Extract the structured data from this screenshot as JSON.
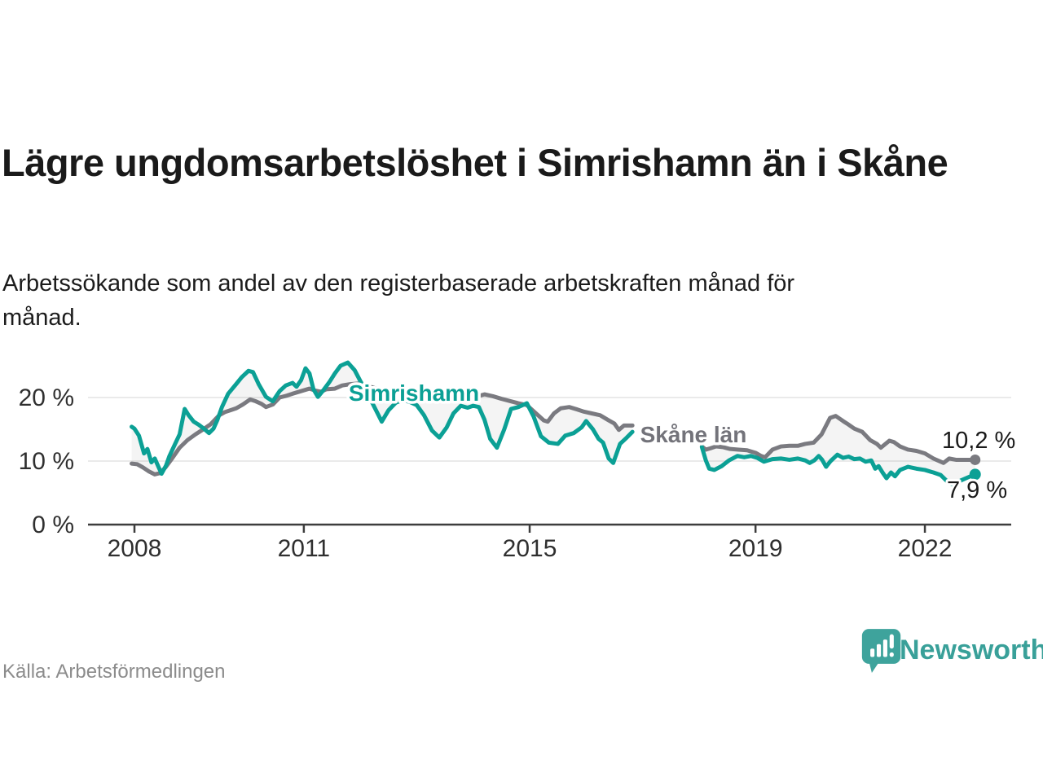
{
  "header": {
    "title": "Lägre ungdomsarbetslöshet i Simrishamn än i Skåne",
    "subtitle": "Arbetssökande som andel av den registerbaserade arbetskraften månad för månad."
  },
  "footer": {
    "source": "Källa: Arbetsförmedlingen",
    "brand": "Newsworthy",
    "brand_icon": "bar-chart-speech-bubble-icon"
  },
  "colors": {
    "simrishamn_teal": "#0ba095",
    "skane_gray": "#7a7a80",
    "skane_label_gray": "#73737a",
    "grid_gray": "#e3e3e3",
    "axis_dark": "#3d3d3d",
    "band_fill": "rgba(150,150,150,0.10)",
    "brand_teal": "#3ea39c"
  },
  "chart_data": {
    "type": "line",
    "title": "Lägre ungdomsarbetslöshet i Simrishamn än i Skåne",
    "subtitle": "Arbetssökande som andel av den registerbaserade arbetskraften månad för månad.",
    "grid": "horizontal",
    "legend_position": "inline-labels",
    "x_axis": {
      "tick_values": [
        2008,
        2011,
        2015,
        2019,
        2022
      ],
      "tick_labels": [
        "2008",
        "2011",
        "2015",
        "2019",
        "2022"
      ],
      "range": [
        2007.6,
        2023.6
      ]
    },
    "y_axis": {
      "tick_values": [
        0,
        10,
        20
      ],
      "tick_labels": [
        "0 %",
        "10 %",
        "20 %"
      ],
      "range": [
        0,
        27
      ],
      "unit": "%"
    },
    "data_gap": [
      2016.85,
      2018.05
    ],
    "series": [
      {
        "name": "Simrishamn",
        "color": "#0ba095",
        "end_value": 7.9,
        "end_value_label": "7,9 %",
        "segments": [
          [
            [
              2007.95,
              15.4
            ],
            [
              2008.0,
              15.1
            ],
            [
              2008.08,
              14.0
            ],
            [
              2008.17,
              11.2
            ],
            [
              2008.23,
              11.9
            ],
            [
              2008.3,
              9.8
            ],
            [
              2008.36,
              10.4
            ],
            [
              2008.43,
              9.0
            ],
            [
              2008.48,
              8.0
            ],
            [
              2008.56,
              9.3
            ],
            [
              2008.62,
              10.8
            ],
            [
              2008.72,
              12.7
            ],
            [
              2008.8,
              14.2
            ],
            [
              2008.89,
              18.2
            ],
            [
              2008.96,
              17.2
            ],
            [
              2009.05,
              16.2
            ],
            [
              2009.14,
              15.7
            ],
            [
              2009.23,
              15.1
            ],
            [
              2009.32,
              14.4
            ],
            [
              2009.4,
              15.1
            ],
            [
              2009.47,
              16.5
            ],
            [
              2009.55,
              18.5
            ],
            [
              2009.66,
              20.6
            ],
            [
              2009.8,
              22.1
            ],
            [
              2009.9,
              23.2
            ],
            [
              2010.02,
              24.2
            ],
            [
              2010.1,
              24.0
            ],
            [
              2010.2,
              22.1
            ],
            [
              2010.33,
              20.1
            ],
            [
              2010.45,
              19.4
            ],
            [
              2010.57,
              21.0
            ],
            [
              2010.68,
              21.9
            ],
            [
              2010.8,
              22.3
            ],
            [
              2010.87,
              21.7
            ],
            [
              2010.95,
              22.7
            ],
            [
              2011.03,
              24.6
            ],
            [
              2011.1,
              23.8
            ],
            [
              2011.17,
              21.3
            ],
            [
              2011.25,
              20.1
            ],
            [
              2011.35,
              21.2
            ],
            [
              2011.45,
              22.4
            ],
            [
              2011.55,
              23.8
            ],
            [
              2011.65,
              25.0
            ],
            [
              2011.78,
              25.5
            ],
            [
              2011.9,
              24.3
            ],
            [
              2012.0,
              22.6
            ],
            [
              2012.12,
              20.8
            ],
            [
              2012.25,
              18.5
            ],
            [
              2012.38,
              16.2
            ],
            [
              2012.5,
              18.0
            ],
            [
              2012.63,
              19.2
            ],
            [
              2012.75,
              19.6
            ],
            [
              2012.88,
              19.3
            ],
            [
              2013.0,
              18.8
            ],
            [
              2013.13,
              17.2
            ],
            [
              2013.27,
              14.8
            ],
            [
              2013.4,
              13.7
            ],
            [
              2013.53,
              15.3
            ],
            [
              2013.65,
              17.5
            ],
            [
              2013.78,
              18.7
            ],
            [
              2013.9,
              18.4
            ],
            [
              2014.0,
              18.7
            ],
            [
              2014.1,
              18.5
            ],
            [
              2014.2,
              16.5
            ],
            [
              2014.3,
              13.5
            ],
            [
              2014.42,
              12.1
            ],
            [
              2014.55,
              15.0
            ],
            [
              2014.67,
              18.2
            ],
            [
              2014.8,
              18.5
            ],
            [
              2014.95,
              19.1
            ],
            [
              2015.07,
              17.0
            ],
            [
              2015.2,
              13.9
            ],
            [
              2015.34,
              12.9
            ],
            [
              2015.5,
              12.7
            ],
            [
              2015.63,
              14.0
            ],
            [
              2015.78,
              14.4
            ],
            [
              2015.92,
              15.3
            ],
            [
              2016.0,
              16.3
            ],
            [
              2016.12,
              15.0
            ],
            [
              2016.22,
              13.5
            ],
            [
              2016.3,
              12.9
            ],
            [
              2016.4,
              10.4
            ],
            [
              2016.48,
              9.7
            ],
            [
              2016.6,
              12.7
            ],
            [
              2016.72,
              13.7
            ],
            [
              2016.82,
              14.6
            ]
          ],
          [
            [
              2018.05,
              12.2
            ],
            [
              2018.12,
              10.1
            ],
            [
              2018.18,
              8.8
            ],
            [
              2018.27,
              8.6
            ],
            [
              2018.4,
              9.2
            ],
            [
              2018.53,
              10.1
            ],
            [
              2018.68,
              10.8
            ],
            [
              2018.8,
              10.6
            ],
            [
              2018.92,
              10.8
            ],
            [
              2019.03,
              10.5
            ],
            [
              2019.15,
              9.9
            ],
            [
              2019.3,
              10.3
            ],
            [
              2019.45,
              10.4
            ],
            [
              2019.6,
              10.2
            ],
            [
              2019.75,
              10.4
            ],
            [
              2019.88,
              10.1
            ],
            [
              2019.96,
              9.7
            ],
            [
              2020.04,
              10.1
            ],
            [
              2020.12,
              10.8
            ],
            [
              2020.18,
              10.2
            ],
            [
              2020.25,
              9.1
            ],
            [
              2020.33,
              10.0
            ],
            [
              2020.45,
              11.0
            ],
            [
              2020.55,
              10.5
            ],
            [
              2020.65,
              10.7
            ],
            [
              2020.75,
              10.3
            ],
            [
              2020.85,
              10.4
            ],
            [
              2020.95,
              9.9
            ],
            [
              2021.05,
              10.1
            ],
            [
              2021.12,
              8.8
            ],
            [
              2021.18,
              9.2
            ],
            [
              2021.25,
              8.2
            ],
            [
              2021.32,
              7.3
            ],
            [
              2021.4,
              8.2
            ],
            [
              2021.47,
              7.6
            ],
            [
              2021.56,
              8.6
            ],
            [
              2021.7,
              9.1
            ],
            [
              2021.85,
              8.8
            ],
            [
              2022.0,
              8.6
            ],
            [
              2022.15,
              8.2
            ],
            [
              2022.28,
              7.8
            ],
            [
              2022.42,
              6.6
            ],
            [
              2022.5,
              6.3
            ],
            [
              2022.65,
              7.0
            ],
            [
              2022.78,
              7.5
            ],
            [
              2022.89,
              7.9
            ]
          ]
        ]
      },
      {
        "name": "Skåne län",
        "color": "#7a7a80",
        "end_value": 10.2,
        "end_value_label": "10,2 %",
        "segments": [
          [
            [
              2007.95,
              9.6
            ],
            [
              2008.05,
              9.5
            ],
            [
              2008.15,
              9.0
            ],
            [
              2008.25,
              8.4
            ],
            [
              2008.36,
              7.9
            ],
            [
              2008.45,
              8.1
            ],
            [
              2008.55,
              9.0
            ],
            [
              2008.65,
              10.2
            ],
            [
              2008.8,
              12.1
            ],
            [
              2008.94,
              13.3
            ],
            [
              2009.08,
              14.2
            ],
            [
              2009.22,
              15.0
            ],
            [
              2009.35,
              15.8
            ],
            [
              2009.5,
              17.2
            ],
            [
              2009.6,
              17.7
            ],
            [
              2009.7,
              18.0
            ],
            [
              2009.8,
              18.3
            ],
            [
              2009.92,
              18.9
            ],
            [
              2010.05,
              19.7
            ],
            [
              2010.15,
              19.4
            ],
            [
              2010.25,
              19.0
            ],
            [
              2010.33,
              18.5
            ],
            [
              2010.45,
              18.9
            ],
            [
              2010.57,
              20.0
            ],
            [
              2010.7,
              20.3
            ],
            [
              2010.8,
              20.6
            ],
            [
              2010.95,
              21.0
            ],
            [
              2011.1,
              21.4
            ],
            [
              2011.2,
              21.1
            ],
            [
              2011.3,
              20.9
            ],
            [
              2011.4,
              21.3
            ],
            [
              2011.55,
              21.4
            ],
            [
              2011.68,
              21.9
            ],
            [
              2011.82,
              22.1
            ],
            [
              2011.95,
              22.2
            ],
            [
              2012.1,
              21.9
            ],
            [
              2012.25,
              21.5
            ],
            [
              2012.4,
              21.2
            ],
            [
              2012.55,
              21.0
            ],
            [
              2012.7,
              20.8
            ],
            [
              2012.85,
              20.7
            ],
            [
              2013.0,
              20.9
            ],
            [
              2013.15,
              20.6
            ],
            [
              2013.3,
              20.2
            ],
            [
              2013.45,
              19.9
            ],
            [
              2013.6,
              19.8
            ],
            [
              2013.75,
              19.9
            ],
            [
              2013.9,
              19.8
            ],
            [
              2014.0,
              20.0
            ],
            [
              2014.2,
              20.5
            ],
            [
              2014.35,
              20.2
            ],
            [
              2014.5,
              19.8
            ],
            [
              2014.67,
              19.4
            ],
            [
              2014.8,
              19.1
            ],
            [
              2014.95,
              18.8
            ],
            [
              2015.1,
              17.6
            ],
            [
              2015.25,
              16.4
            ],
            [
              2015.32,
              16.2
            ],
            [
              2015.43,
              17.5
            ],
            [
              2015.55,
              18.3
            ],
            [
              2015.7,
              18.5
            ],
            [
              2015.85,
              18.1
            ],
            [
              2015.95,
              17.8
            ],
            [
              2016.1,
              17.5
            ],
            [
              2016.25,
              17.2
            ],
            [
              2016.4,
              16.4
            ],
            [
              2016.5,
              15.9
            ],
            [
              2016.58,
              14.9
            ],
            [
              2016.67,
              15.6
            ],
            [
              2016.82,
              15.6
            ]
          ],
          [
            [
              2018.05,
              12.3
            ],
            [
              2018.12,
              11.8
            ],
            [
              2018.2,
              12.0
            ],
            [
              2018.3,
              12.3
            ],
            [
              2018.42,
              12.2
            ],
            [
              2018.55,
              11.9
            ],
            [
              2018.7,
              11.8
            ],
            [
              2018.85,
              11.7
            ],
            [
              2019.0,
              11.3
            ],
            [
              2019.1,
              10.8
            ],
            [
              2019.17,
              10.6
            ],
            [
              2019.3,
              11.8
            ],
            [
              2019.45,
              12.3
            ],
            [
              2019.6,
              12.4
            ],
            [
              2019.75,
              12.4
            ],
            [
              2019.88,
              12.7
            ],
            [
              2020.03,
              12.9
            ],
            [
              2020.17,
              14.2
            ],
            [
              2020.32,
              16.8
            ],
            [
              2020.42,
              17.1
            ],
            [
              2020.55,
              16.3
            ],
            [
              2020.62,
              15.9
            ],
            [
              2020.75,
              15.1
            ],
            [
              2020.89,
              14.6
            ],
            [
              2021.03,
              13.3
            ],
            [
              2021.15,
              12.7
            ],
            [
              2021.22,
              12.1
            ],
            [
              2021.37,
              13.2
            ],
            [
              2021.45,
              13.0
            ],
            [
              2021.56,
              12.3
            ],
            [
              2021.7,
              11.8
            ],
            [
              2021.85,
              11.6
            ],
            [
              2022.0,
              11.2
            ],
            [
              2022.15,
              10.4
            ],
            [
              2022.33,
              9.7
            ],
            [
              2022.43,
              10.4
            ],
            [
              2022.55,
              10.2
            ],
            [
              2022.7,
              10.2
            ],
            [
              2022.89,
              10.2
            ]
          ]
        ]
      }
    ]
  }
}
